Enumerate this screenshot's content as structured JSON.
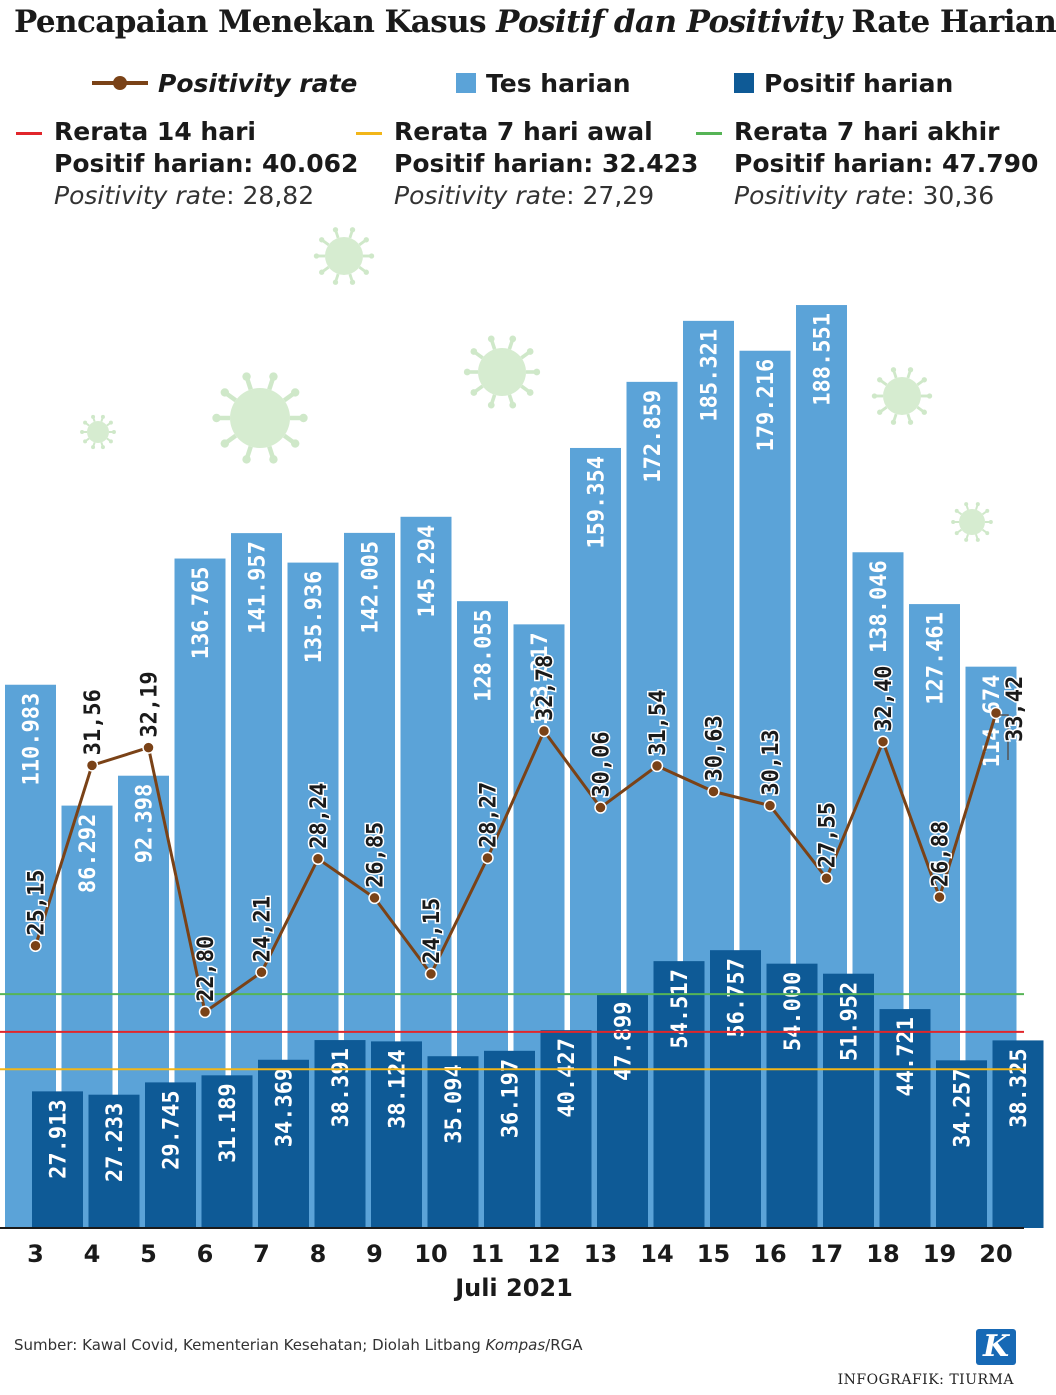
{
  "title": {
    "part1": "Pencapaian Menekan Kasus ",
    "part2": "Positif dan Positivity",
    "part3": " Rate Harian"
  },
  "legend": {
    "positivity": "Positivity rate",
    "tests": "Tes harian",
    "positive": "Positif harian"
  },
  "averages": [
    {
      "id": "avg14",
      "row1": "Rerata 14 hari",
      "row2": "Positif harian: 40.062",
      "rate_label": "Positivity rate",
      "rate_value": ": 28,82",
      "color": "#e1262b",
      "positive": 40062
    },
    {
      "id": "avg7a",
      "row1": "Rerata 7 hari awal",
      "row2": "Positif harian: 32.423",
      "rate_label": "Positivity rate",
      "rate_value": ": 27,29",
      "color": "#f2b619",
      "positive": 32423
    },
    {
      "id": "avg7b",
      "row1": "Rerata 7 hari akhir",
      "row2": "Positif harian: 47.790",
      "rate_label": "Positivity rate",
      "rate_value": ": 30,36",
      "color": "#56b456",
      "positive": 47790
    }
  ],
  "chart_data": {
    "type": "bar",
    "xlabel": "Juli 2021",
    "categories": [
      "3",
      "4",
      "5",
      "6",
      "7",
      "8",
      "9",
      "10",
      "11",
      "12",
      "13",
      "14",
      "15",
      "16",
      "17",
      "18",
      "19",
      "20"
    ],
    "series": [
      {
        "name": "Tes harian",
        "type": "bar",
        "color": "#5ba3d8",
        "values": [
          110983,
          86292,
          92398,
          136765,
          141957,
          135936,
          142005,
          145294,
          128055,
          123317,
          159354,
          172859,
          185321,
          179216,
          188551,
          138046,
          127461,
          114674
        ],
        "labels": [
          "110.983",
          "86.292",
          "92.398",
          "136.765",
          "141.957",
          "135.936",
          "142.005",
          "145.294",
          "128.055",
          "123.317",
          "159.354",
          "172.859",
          "185.321",
          "179.216",
          "188.551",
          "138.046",
          "127.461",
          "114.674"
        ]
      },
      {
        "name": "Positif harian",
        "type": "bar",
        "color": "#0e5a96",
        "values": [
          27913,
          27233,
          29745,
          31189,
          34369,
          38391,
          38124,
          35094,
          36197,
          40427,
          47899,
          54517,
          56757,
          54000,
          51952,
          44721,
          34257,
          38325
        ],
        "labels": [
          "27.913",
          "27.233",
          "29.745",
          "31.189",
          "34.369",
          "38.391",
          "38.124",
          "35.094",
          "36.197",
          "40.427",
          "47.899",
          "54.517",
          "56.757",
          "54.000",
          "51.952",
          "44.721",
          "34.257",
          "38.325"
        ]
      },
      {
        "name": "Positivity rate",
        "type": "line",
        "color": "#7a4217",
        "values": [
          25.15,
          31.56,
          32.19,
          22.8,
          24.21,
          28.24,
          26.85,
          24.15,
          28.27,
          32.78,
          30.06,
          31.54,
          30.63,
          30.13,
          27.55,
          32.4,
          26.88,
          33.42
        ],
        "labels": [
          "25,15",
          "31,56",
          "32,19",
          "22,80",
          "24,21",
          "28,24",
          "26,85",
          "24,15",
          "28,27",
          "32,78",
          "30,06",
          "31,54",
          "30,63",
          "30,13",
          "27,55",
          "32,40",
          "26,88",
          "33,42"
        ]
      }
    ],
    "legend_position": "top",
    "grid": false
  },
  "footer": {
    "source_prefix": "Sumber: Kawal Covid, Kementerian Kesehatan; Diolah Litbang ",
    "source_italic": "Kompas",
    "source_suffix": "/RGA",
    "logo": "K",
    "credit": "INFOGRAFIK: TIURMA"
  }
}
